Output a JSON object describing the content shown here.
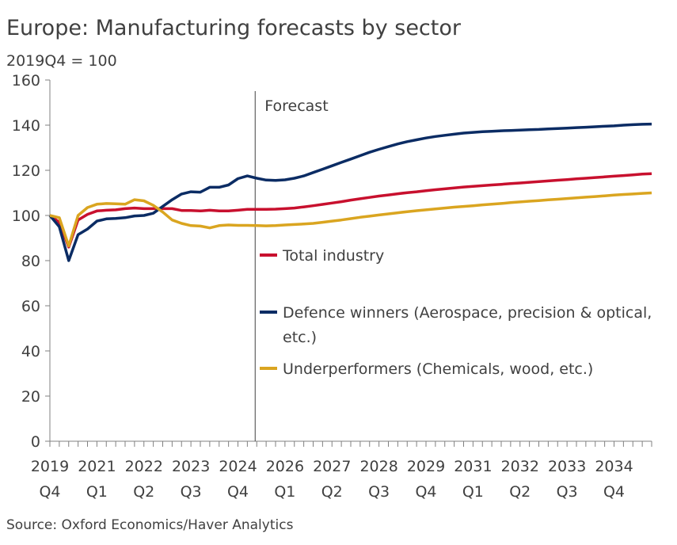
{
  "chart_data": {
    "type": "line",
    "title": "Europe: Manufacturing forecasts by sector",
    "subtitle": "2019Q4 = 100",
    "source": "Source: Oxford Economics/Haver Analytics",
    "x_start": "2019Q4",
    "x_end": "2035Q4",
    "x_tick_labels": [
      [
        "2019",
        "Q4"
      ],
      [
        "2021",
        "Q1"
      ],
      [
        "2022",
        "Q2"
      ],
      [
        "2023",
        "Q3"
      ],
      [
        "2024",
        "Q4"
      ],
      [
        "2026",
        "Q1"
      ],
      [
        "2027",
        "Q2"
      ],
      [
        "2028",
        "Q3"
      ],
      [
        "2029",
        "Q4"
      ],
      [
        "2031",
        "Q1"
      ],
      [
        "2032",
        "Q2"
      ],
      [
        "2033",
        "Q3"
      ],
      [
        "2034",
        "Q4"
      ]
    ],
    "y_ticks": [
      0,
      20,
      40,
      60,
      80,
      100,
      120,
      140,
      160
    ],
    "ylim": [
      0,
      160
    ],
    "grid": false,
    "legend_placement": "center",
    "forecast": {
      "label": "Forecast",
      "start": "2025Q2"
    },
    "series": [
      {
        "name": "Total industry",
        "color": "#C8102E",
        "values": [
          100,
          97,
          86,
          98,
          100.5,
          102,
          102.3,
          102.5,
          103,
          103.3,
          103,
          103,
          103,
          103,
          102.2,
          102.2,
          102,
          102.3,
          102,
          102,
          102.3,
          102.7,
          102.7,
          102.7,
          102.8,
          103,
          103.3,
          103.8,
          104.3,
          104.9,
          105.5,
          106.1,
          106.8,
          107.4,
          108,
          108.6,
          109.1,
          109.6,
          110.1,
          110.5,
          111,
          111.4,
          111.8,
          112.2,
          112.6,
          112.9,
          113.2,
          113.5,
          113.8,
          114.1,
          114.4,
          114.7,
          115,
          115.3,
          115.6,
          115.9,
          116.2,
          116.5,
          116.8,
          117.1,
          117.4,
          117.7,
          118,
          118.3,
          118.5
        ]
      },
      {
        "name": "Defence winners (Aerospace, precision & optical,",
        "name_line2": "etc.)",
        "color": "#0B2C64",
        "values": [
          100,
          95,
          80,
          91.5,
          94,
          97.5,
          98.5,
          98.7,
          99,
          99.8,
          100,
          101,
          104,
          107,
          109.5,
          110.5,
          110.3,
          112.5,
          112.5,
          113.5,
          116.3,
          117.5,
          116.5,
          115.7,
          115.5,
          115.8,
          116.5,
          117.5,
          119,
          120.5,
          122,
          123.5,
          125,
          126.5,
          128,
          129.3,
          130.5,
          131.7,
          132.7,
          133.5,
          134.3,
          135,
          135.5,
          136,
          136.5,
          136.8,
          137.1,
          137.3,
          137.5,
          137.6,
          137.8,
          138,
          138.1,
          138.3,
          138.5,
          138.7,
          138.9,
          139.1,
          139.3,
          139.5,
          139.7,
          140,
          140.2,
          140.4,
          140.5
        ]
      },
      {
        "name": "Underperformers (Chemicals, wood, etc.)",
        "color": "#DAA520",
        "values": [
          100,
          99,
          86.5,
          100,
          103.5,
          105,
          105.3,
          105.2,
          105,
          107,
          106.5,
          104.5,
          101.5,
          98,
          96.5,
          95.5,
          95.3,
          94.5,
          95.5,
          95.8,
          95.6,
          95.6,
          95.5,
          95.4,
          95.5,
          95.8,
          96,
          96.2,
          96.5,
          97,
          97.5,
          98,
          98.6,
          99.2,
          99.7,
          100.2,
          100.7,
          101.2,
          101.7,
          102.1,
          102.5,
          102.9,
          103.3,
          103.7,
          104,
          104.3,
          104.7,
          105,
          105.3,
          105.7,
          106,
          106.3,
          106.6,
          106.9,
          107.2,
          107.5,
          107.8,
          108.1,
          108.4,
          108.7,
          109,
          109.3,
          109.5,
          109.8,
          110
        ]
      }
    ]
  }
}
